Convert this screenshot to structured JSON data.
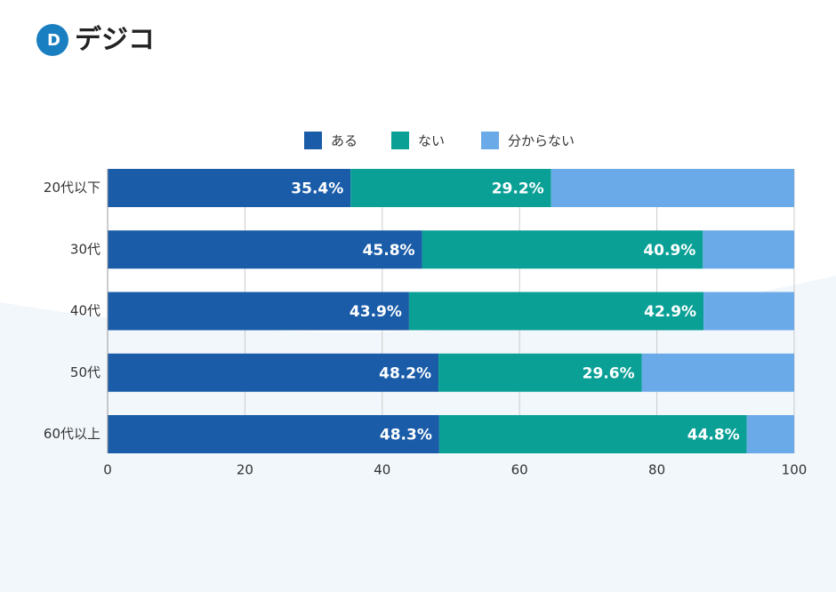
{
  "logo": "デジコ",
  "chart_data": {
    "type": "stacked-barh",
    "categories": [
      "20代以下",
      "30代",
      "40代",
      "50代",
      "60代以上"
    ],
    "series": [
      {
        "name": "ある",
        "color": "#1a5ca8",
        "values": [
          35.4,
          45.8,
          43.9,
          48.2,
          48.3
        ],
        "value_labels": [
          "35.4%",
          "45.8%",
          "43.9%",
          "48.2%",
          "48.3%"
        ]
      },
      {
        "name": "ない",
        "color": "#0aa096",
        "values": [
          29.2,
          40.9,
          42.9,
          29.6,
          44.8
        ],
        "value_labels": [
          "29.2%",
          "40.9%",
          "42.9%",
          "29.6%",
          "44.8%"
        ]
      },
      {
        "name": "分からない",
        "color": "#6aaae8",
        "values": [
          35.4,
          13.3,
          13.2,
          22.2,
          6.9
        ]
      }
    ],
    "xlim": [
      0,
      100
    ],
    "xticks": [
      0,
      20,
      40,
      60,
      80,
      100
    ],
    "grid": true,
    "legend": "top"
  }
}
